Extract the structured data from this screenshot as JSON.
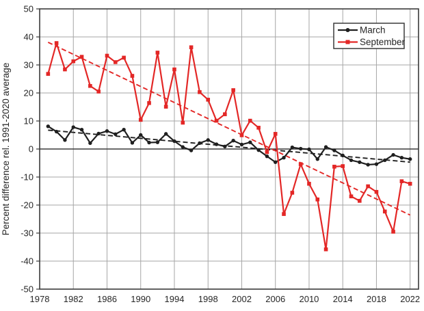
{
  "chart_data": {
    "type": "line",
    "title": "",
    "xlabel": "",
    "ylabel": "Percent difference rel. 1991-2020 average",
    "xlim": [
      1978,
      2023
    ],
    "ylim": [
      -50,
      50
    ],
    "xticks": [
      1978,
      1982,
      1986,
      1990,
      1994,
      1998,
      2002,
      2006,
      2010,
      2014,
      2018,
      2022
    ],
    "yticks": [
      -50,
      -40,
      -30,
      -20,
      -10,
      0,
      10,
      20,
      30,
      40,
      50
    ],
    "grid": true,
    "legend_position": "top-right",
    "x": [
      1979,
      1980,
      1981,
      1982,
      1983,
      1984,
      1985,
      1986,
      1987,
      1988,
      1989,
      1990,
      1991,
      1992,
      1993,
      1994,
      1995,
      1996,
      1997,
      1998,
      1999,
      2000,
      2001,
      2002,
      2003,
      2004,
      2005,
      2006,
      2007,
      2008,
      2009,
      2010,
      2011,
      2012,
      2013,
      2014,
      2015,
      2016,
      2017,
      2018,
      2019,
      2020,
      2021,
      2022
    ],
    "series": [
      {
        "name": "March",
        "marker": "circle",
        "color": "#1f1f1f",
        "trendline": "dashed-linear-fit",
        "values": [
          8.1,
          6.2,
          3.2,
          7.8,
          6.9,
          2.1,
          5.5,
          6.4,
          5.3,
          6.9,
          2.2,
          5.0,
          2.3,
          2.4,
          5.4,
          2.8,
          0.7,
          -0.5,
          2.1,
          3.2,
          1.7,
          0.9,
          3.0,
          1.6,
          2.4,
          -0.4,
          -2.6,
          -4.7,
          -3.1,
          0.6,
          0.1,
          -0.1,
          -3.6,
          0.7,
          -0.5,
          -2.3,
          -4.0,
          -4.7,
          -5.6,
          -5.4,
          -4.0,
          -2.1,
          -3.1,
          -3.6
        ]
      },
      {
        "name": "September",
        "marker": "square",
        "color": "#e32726",
        "trendline": "dashed-linear-fit",
        "values": [
          26.8,
          37.8,
          28.4,
          31.3,
          32.9,
          22.5,
          20.5,
          33.3,
          31.0,
          32.6,
          26.1,
          10.4,
          16.4,
          34.4,
          15.1,
          28.4,
          9.4,
          36.3,
          20.3,
          17.6,
          10.1,
          12.4,
          21.0,
          4.9,
          10.1,
          7.6,
          -1.1,
          5.4,
          -23.2,
          -15.6,
          -5.4,
          -12.4,
          -18.0,
          -35.8,
          -6.3,
          -6.1,
          -16.9,
          -18.5,
          -13.3,
          -15.3,
          -22.3,
          -29.5,
          -11.5,
          -12.4
        ]
      }
    ],
    "colors": {
      "grid": "#a6a6a6",
      "axis": "#3a3a3a",
      "zero_line": "#3a3a3a",
      "text": "#262626",
      "background": "#ffffff"
    }
  }
}
